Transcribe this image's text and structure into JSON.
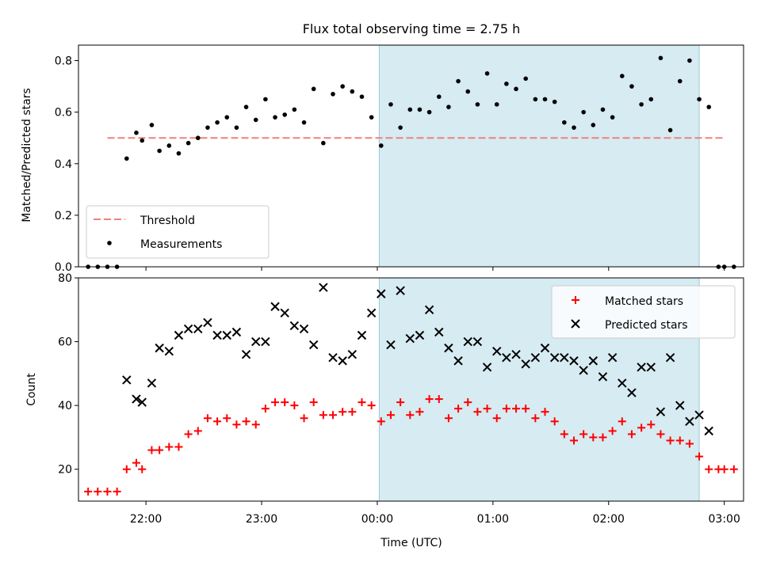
{
  "title": "Flux total observing time = 2.75 h",
  "xlabel": "Time (UTC)",
  "colors": {
    "threshold": "#f08080",
    "measurement": "#000000",
    "matched": "#ff0000",
    "predicted": "#000000",
    "highlight": "#add8e6"
  },
  "chart_data": [
    {
      "type": "scatter",
      "ylabel": "Matched/Predicted stars",
      "ylim": [
        0,
        0.86
      ],
      "yticks": [
        "0.0",
        "0.2",
        "0.4",
        "0.6",
        "0.8"
      ],
      "xlim": [
        "21:25",
        "03:10"
      ],
      "xticks": [
        "22:00",
        "23:00",
        "00:00",
        "01:00",
        "02:00",
        "03:00"
      ],
      "highlight_span": [
        "00:01",
        "02:47"
      ],
      "threshold": {
        "name": "Threshold",
        "value": 0.5,
        "x_range": [
          "21:40",
          "03:00"
        ]
      },
      "legend": {
        "position": "lower-left",
        "entries": [
          "Threshold",
          "Measurements"
        ]
      },
      "series": [
        {
          "name": "Measurements",
          "points": [
            [
              "21:30",
              0.0
            ],
            [
              "21:35",
              0.0
            ],
            [
              "21:40",
              0.0
            ],
            [
              "21:45",
              0.0
            ],
            [
              "21:50",
              0.42
            ],
            [
              "21:55",
              0.52
            ],
            [
              "21:58",
              0.49
            ],
            [
              "22:03",
              0.55
            ],
            [
              "22:07",
              0.45
            ],
            [
              "22:12",
              0.47
            ],
            [
              "22:17",
              0.44
            ],
            [
              "22:22",
              0.48
            ],
            [
              "22:27",
              0.5
            ],
            [
              "22:32",
              0.54
            ],
            [
              "22:37",
              0.56
            ],
            [
              "22:42",
              0.58
            ],
            [
              "22:47",
              0.54
            ],
            [
              "22:52",
              0.62
            ],
            [
              "22:57",
              0.57
            ],
            [
              "23:02",
              0.65
            ],
            [
              "23:07",
              0.58
            ],
            [
              "23:12",
              0.59
            ],
            [
              "23:17",
              0.61
            ],
            [
              "23:22",
              0.56
            ],
            [
              "23:27",
              0.69
            ],
            [
              "23:32",
              0.48
            ],
            [
              "23:37",
              0.67
            ],
            [
              "23:42",
              0.7
            ],
            [
              "23:47",
              0.68
            ],
            [
              "23:52",
              0.66
            ],
            [
              "23:57",
              0.58
            ],
            [
              "00:02",
              0.47
            ],
            [
              "00:07",
              0.63
            ],
            [
              "00:12",
              0.54
            ],
            [
              "00:17",
              0.61
            ],
            [
              "00:22",
              0.61
            ],
            [
              "00:27",
              0.6
            ],
            [
              "00:32",
              0.66
            ],
            [
              "00:37",
              0.62
            ],
            [
              "00:42",
              0.72
            ],
            [
              "00:47",
              0.68
            ],
            [
              "00:52",
              0.63
            ],
            [
              "00:57",
              0.75
            ],
            [
              "01:02",
              0.63
            ],
            [
              "01:07",
              0.71
            ],
            [
              "01:12",
              0.69
            ],
            [
              "01:17",
              0.73
            ],
            [
              "01:22",
              0.65
            ],
            [
              "01:27",
              0.65
            ],
            [
              "01:32",
              0.64
            ],
            [
              "01:37",
              0.56
            ],
            [
              "01:42",
              0.54
            ],
            [
              "01:47",
              0.6
            ],
            [
              "01:52",
              0.55
            ],
            [
              "01:57",
              0.61
            ],
            [
              "02:02",
              0.58
            ],
            [
              "02:07",
              0.74
            ],
            [
              "02:12",
              0.7
            ],
            [
              "02:17",
              0.63
            ],
            [
              "02:22",
              0.65
            ],
            [
              "02:27",
              0.81
            ],
            [
              "02:32",
              0.53
            ],
            [
              "02:37",
              0.72
            ],
            [
              "02:42",
              0.8
            ],
            [
              "02:47",
              0.65
            ],
            [
              "02:52",
              0.62
            ],
            [
              "02:57",
              0.0
            ],
            [
              "03:00",
              0.0
            ],
            [
              "03:05",
              0.0
            ]
          ]
        }
      ]
    },
    {
      "type": "scatter",
      "ylabel": "Count",
      "ylim": [
        10,
        80
      ],
      "yticks": [
        "20",
        "40",
        "60",
        "80"
      ],
      "xlim": [
        "21:25",
        "03:10"
      ],
      "xticks": [
        "22:00",
        "23:00",
        "00:00",
        "01:00",
        "02:00",
        "03:00"
      ],
      "highlight_span": [
        "00:01",
        "02:47"
      ],
      "legend": {
        "position": "upper-right",
        "entries": [
          "Matched stars",
          "Predicted stars"
        ]
      },
      "series": [
        {
          "name": "Matched stars",
          "points": [
            [
              "21:30",
              13
            ],
            [
              "21:35",
              13
            ],
            [
              "21:40",
              13
            ],
            [
              "21:45",
              13
            ],
            [
              "21:50",
              20
            ],
            [
              "21:55",
              22
            ],
            [
              "21:58",
              20
            ],
            [
              "22:03",
              26
            ],
            [
              "22:07",
              26
            ],
            [
              "22:12",
              27
            ],
            [
              "22:17",
              27
            ],
            [
              "22:22",
              31
            ],
            [
              "22:27",
              32
            ],
            [
              "22:32",
              36
            ],
            [
              "22:37",
              35
            ],
            [
              "22:42",
              36
            ],
            [
              "22:47",
              34
            ],
            [
              "22:52",
              35
            ],
            [
              "22:57",
              34
            ],
            [
              "23:02",
              39
            ],
            [
              "23:07",
              41
            ],
            [
              "23:12",
              41
            ],
            [
              "23:17",
              40
            ],
            [
              "23:22",
              36
            ],
            [
              "23:27",
              41
            ],
            [
              "23:32",
              37
            ],
            [
              "23:37",
              37
            ],
            [
              "23:42",
              38
            ],
            [
              "23:47",
              38
            ],
            [
              "23:52",
              41
            ],
            [
              "23:57",
              40
            ],
            [
              "00:02",
              35
            ],
            [
              "00:07",
              37
            ],
            [
              "00:12",
              41
            ],
            [
              "00:17",
              37
            ],
            [
              "00:22",
              38
            ],
            [
              "00:27",
              42
            ],
            [
              "00:32",
              42
            ],
            [
              "00:37",
              36
            ],
            [
              "00:42",
              39
            ],
            [
              "00:47",
              41
            ],
            [
              "00:52",
              38
            ],
            [
              "00:57",
              39
            ],
            [
              "01:02",
              36
            ],
            [
              "01:07",
              39
            ],
            [
              "01:12",
              39
            ],
            [
              "01:17",
              39
            ],
            [
              "01:22",
              36
            ],
            [
              "01:27",
              38
            ],
            [
              "01:32",
              35
            ],
            [
              "01:37",
              31
            ],
            [
              "01:42",
              29
            ],
            [
              "01:47",
              31
            ],
            [
              "01:52",
              30
            ],
            [
              "01:57",
              30
            ],
            [
              "02:02",
              32
            ],
            [
              "02:07",
              35
            ],
            [
              "02:12",
              31
            ],
            [
              "02:17",
              33
            ],
            [
              "02:22",
              34
            ],
            [
              "02:27",
              31
            ],
            [
              "02:32",
              29
            ],
            [
              "02:37",
              29
            ],
            [
              "02:42",
              28
            ],
            [
              "02:47",
              24
            ],
            [
              "02:52",
              20
            ],
            [
              "02:57",
              20
            ],
            [
              "03:00",
              20
            ],
            [
              "03:05",
              20
            ]
          ]
        },
        {
          "name": "Predicted stars",
          "points": [
            [
              "21:50",
              48
            ],
            [
              "21:55",
              42
            ],
            [
              "21:58",
              41
            ],
            [
              "22:03",
              47
            ],
            [
              "22:07",
              58
            ],
            [
              "22:12",
              57
            ],
            [
              "22:17",
              62
            ],
            [
              "22:22",
              64
            ],
            [
              "22:27",
              64
            ],
            [
              "22:32",
              66
            ],
            [
              "22:37",
              62
            ],
            [
              "22:42",
              62
            ],
            [
              "22:47",
              63
            ],
            [
              "22:52",
              56
            ],
            [
              "22:57",
              60
            ],
            [
              "23:02",
              60
            ],
            [
              "23:07",
              71
            ],
            [
              "23:12",
              69
            ],
            [
              "23:17",
              65
            ],
            [
              "23:22",
              64
            ],
            [
              "23:27",
              59
            ],
            [
              "23:32",
              77
            ],
            [
              "23:37",
              55
            ],
            [
              "23:42",
              54
            ],
            [
              "23:47",
              56
            ],
            [
              "23:52",
              62
            ],
            [
              "23:57",
              69
            ],
            [
              "00:02",
              75
            ],
            [
              "00:07",
              59
            ],
            [
              "00:12",
              76
            ],
            [
              "00:17",
              61
            ],
            [
              "00:22",
              62
            ],
            [
              "00:27",
              70
            ],
            [
              "00:32",
              63
            ],
            [
              "00:37",
              58
            ],
            [
              "00:42",
              54
            ],
            [
              "00:47",
              60
            ],
            [
              "00:52",
              60
            ],
            [
              "00:57",
              52
            ],
            [
              "01:02",
              57
            ],
            [
              "01:07",
              55
            ],
            [
              "01:12",
              56
            ],
            [
              "01:17",
              53
            ],
            [
              "01:22",
              55
            ],
            [
              "01:27",
              58
            ],
            [
              "01:32",
              55
            ],
            [
              "01:37",
              55
            ],
            [
              "01:42",
              54
            ],
            [
              "01:47",
              51
            ],
            [
              "01:52",
              54
            ],
            [
              "01:57",
              49
            ],
            [
              "02:02",
              55
            ],
            [
              "02:07",
              47
            ],
            [
              "02:12",
              44
            ],
            [
              "02:17",
              52
            ],
            [
              "02:22",
              52
            ],
            [
              "02:27",
              38
            ],
            [
              "02:32",
              55
            ],
            [
              "02:37",
              40
            ],
            [
              "02:42",
              35
            ],
            [
              "02:47",
              37
            ],
            [
              "02:52",
              32
            ]
          ]
        }
      ]
    }
  ]
}
